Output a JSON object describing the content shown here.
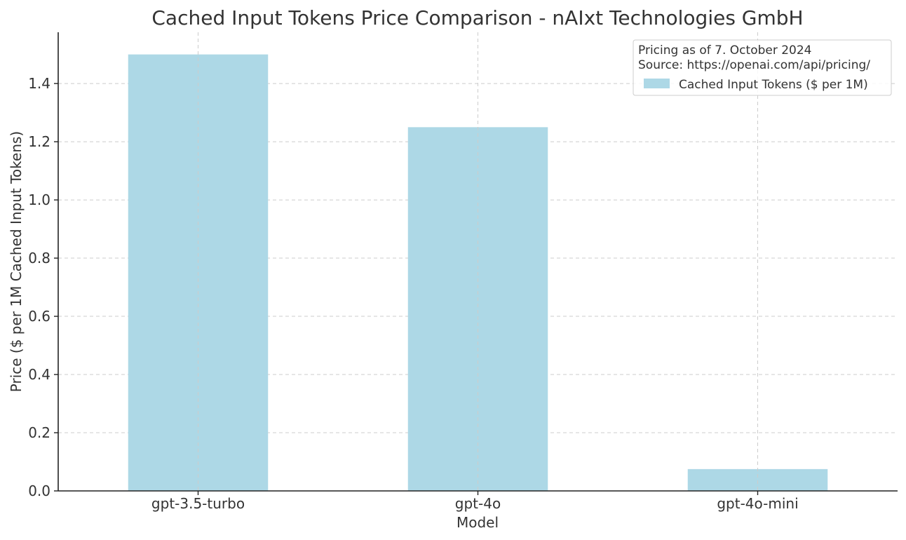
{
  "chart_data": {
    "type": "bar",
    "title": "Cached Input Tokens Price Comparison - nAIxt Technologies GmbH",
    "xlabel": "Model",
    "ylabel": "Price ($ per 1M Cached Input Tokens)",
    "categories": [
      "gpt-3.5-turbo",
      "gpt-4o",
      "gpt-4o-mini"
    ],
    "series": [
      {
        "name": "Cached Input Tokens ($ per 1M)",
        "values": [
          1.5,
          1.25,
          0.075
        ],
        "color": "#add8e6"
      }
    ],
    "ylim": [
      0,
      1.5762
    ],
    "yticks": [
      0.0,
      0.2,
      0.4,
      0.6,
      0.8,
      1.0,
      1.2,
      1.4
    ],
    "ytick_labels": [
      "0.0",
      "0.2",
      "0.4",
      "0.6",
      "0.8",
      "1.0",
      "1.2",
      "1.4"
    ],
    "grid": true,
    "legend": {
      "placement": "top-right",
      "title_lines": [
        "Pricing as of 7. October 2024",
        "Source: https://openai.com/api/pricing/"
      ]
    }
  }
}
